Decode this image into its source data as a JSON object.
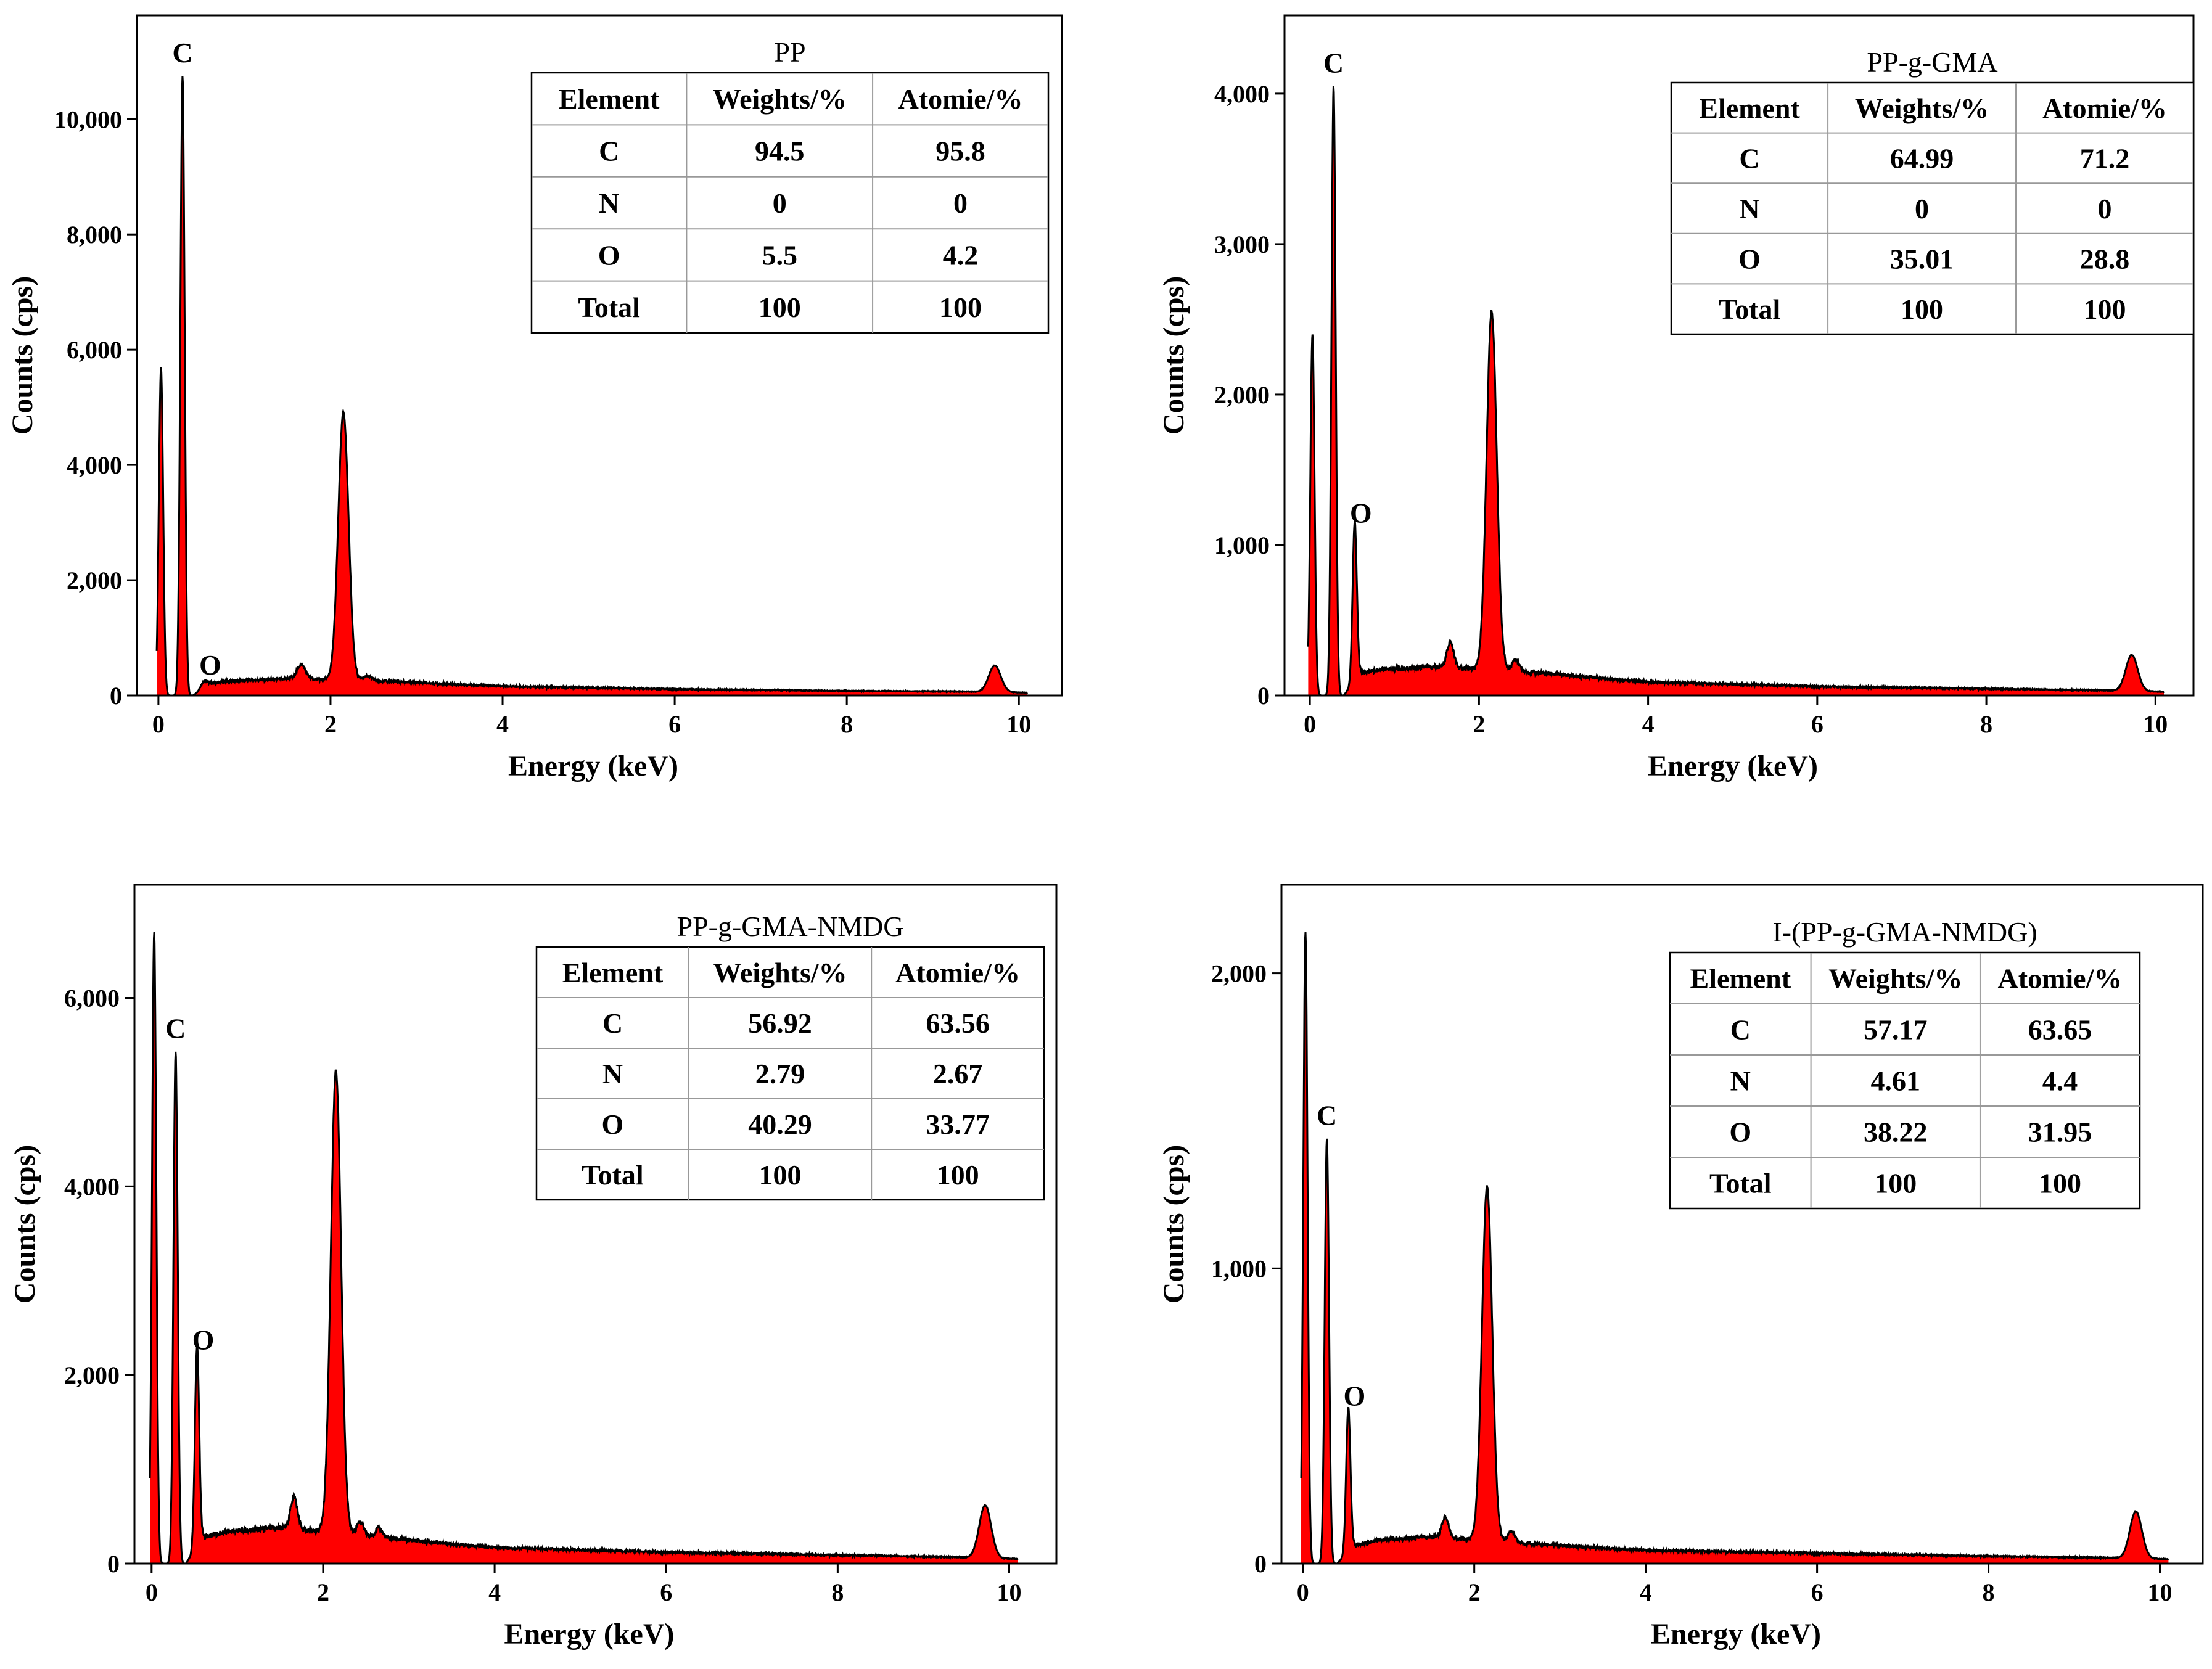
{
  "chart_data": [
    {
      "type": "area",
      "title": "PP",
      "xlabel": "Energy (keV)",
      "ylabel": "Counts (cps)",
      "xlim": [
        -0.25,
        10.5
      ],
      "ylim": [
        0,
        11800
      ],
      "xticks": [
        0,
        2,
        4,
        6,
        8,
        10
      ],
      "xtick_labels": [
        "0",
        "2",
        "4",
        "6",
        "8",
        "10"
      ],
      "yticks": [
        0,
        2000,
        4000,
        6000,
        8000,
        10000
      ],
      "ytick_labels": [
        "0",
        "2,000",
        "4,000",
        "6,000",
        "8,000",
        "10,000"
      ],
      "fill_color": "#ff0000",
      "line_color": "#000000",
      "baseline": {
        "x": [
          0.4,
          0.8,
          1.5,
          2.6,
          4,
          6,
          8,
          9.3,
          10.1
        ],
        "y": [
          150,
          250,
          290,
          250,
          160,
          110,
          80,
          70,
          50
        ]
      },
      "peaks": [
        {
          "x": 0.03,
          "y": 5700,
          "width": 0.025
        },
        {
          "x": 0.28,
          "y": 10750,
          "width": 0.025
        },
        {
          "x": 0.53,
          "y": 130,
          "width": 0.04
        },
        {
          "x": 1.66,
          "y": 250,
          "width": 0.05
        },
        {
          "x": 2.15,
          "y": 4650,
          "width": 0.06
        },
        {
          "x": 2.43,
          "y": 80,
          "width": 0.05
        },
        {
          "x": 9.72,
          "y": 460,
          "width": 0.07
        }
      ],
      "peak_labels": [
        {
          "text": "C",
          "x": 0.28,
          "y": 10750
        },
        {
          "text": "O",
          "x": 0.53,
          "y": 130
        }
      ],
      "table": {
        "headers": [
          "Element",
          "Weights/%",
          "Atomie/%"
        ],
        "rows": [
          [
            "C",
            "94.5",
            "95.8"
          ],
          [
            "N",
            "0",
            "0"
          ],
          [
            "O",
            "5.5",
            "4.2"
          ],
          [
            "Total",
            "100",
            "100"
          ]
        ]
      }
    },
    {
      "type": "area",
      "title": "PP-g-GMA",
      "xlabel": "Energy (keV)",
      "ylabel": "Counts (cps)",
      "xlim": [
        -0.3,
        10.45
      ],
      "ylim": [
        0,
        4520
      ],
      "xticks": [
        0,
        2,
        4,
        6,
        8,
        10
      ],
      "xtick_labels": [
        "0",
        "2",
        "4",
        "6",
        "8",
        "10"
      ],
      "yticks": [
        0,
        1000,
        2000,
        3000,
        4000
      ],
      "ytick_labels": [
        "0",
        "1,000",
        "2,000",
        "3,000",
        "4,000"
      ],
      "fill_color": "#ff0000",
      "line_color": "#000000",
      "baseline": {
        "x": [
          0.6,
          0.9,
          1.5,
          2.5,
          4,
          6,
          8,
          9.3,
          10.1
        ],
        "y": [
          150,
          175,
          190,
          160,
          90,
          60,
          45,
          35,
          25
        ]
      },
      "peaks": [
        {
          "x": 0.03,
          "y": 2400,
          "width": 0.025
        },
        {
          "x": 0.28,
          "y": 4050,
          "width": 0.025
        },
        {
          "x": 0.53,
          "y": 1060,
          "width": 0.025
        },
        {
          "x": 1.66,
          "y": 170,
          "width": 0.04
        },
        {
          "x": 2.15,
          "y": 2380,
          "width": 0.06
        },
        {
          "x": 2.43,
          "y": 80,
          "width": 0.04
        },
        {
          "x": 9.72,
          "y": 240,
          "width": 0.07
        }
      ],
      "peak_labels": [
        {
          "text": "C",
          "x": 0.28,
          "y": 4050
        },
        {
          "text": "O",
          "x": 0.53,
          "y": 1060
        }
      ],
      "table": {
        "headers": [
          "Element",
          "Weights/%",
          "Atomie/%"
        ],
        "rows": [
          [
            "C",
            "64.99",
            "71.2"
          ],
          [
            "N",
            "0",
            "0"
          ],
          [
            "O",
            "35.01",
            "28.8"
          ],
          [
            "Total",
            "100",
            "100"
          ]
        ]
      }
    },
    {
      "type": "area",
      "title": "PP-g-GMA-NMDG",
      "xlabel": "Energy (keV)",
      "ylabel": "Counts (cps)",
      "xlim": [
        -0.2,
        10.55
      ],
      "ylim": [
        0,
        7200
      ],
      "xticks": [
        0,
        2,
        4,
        6,
        8,
        10
      ],
      "xtick_labels": [
        "0",
        "2",
        "4",
        "6",
        "8",
        "10"
      ],
      "yticks": [
        0,
        2000,
        4000,
        6000
      ],
      "ytick_labels": [
        "0",
        "2,000",
        "4,000",
        "6,000"
      ],
      "fill_color": "#ff0000",
      "line_color": "#000000",
      "baseline": {
        "x": [
          0.6,
          0.9,
          1.5,
          2.5,
          4,
          6,
          8,
          9.3,
          10.1
        ],
        "y": [
          280,
          340,
          380,
          290,
          170,
          120,
          90,
          70,
          50
        ]
      },
      "peaks": [
        {
          "x": 0.03,
          "y": 6700,
          "width": 0.025
        },
        {
          "x": 0.28,
          "y": 5430,
          "width": 0.025
        },
        {
          "x": 0.53,
          "y": 2130,
          "width": 0.025
        },
        {
          "x": 1.66,
          "y": 350,
          "width": 0.04
        },
        {
          "x": 2.15,
          "y": 4900,
          "width": 0.06
        },
        {
          "x": 2.43,
          "y": 150,
          "width": 0.04
        },
        {
          "x": 2.65,
          "y": 100,
          "width": 0.04
        },
        {
          "x": 9.72,
          "y": 560,
          "width": 0.07
        }
      ],
      "peak_labels": [
        {
          "text": "C",
          "x": 0.28,
          "y": 5430
        },
        {
          "text": "O",
          "x": 0.53,
          "y": 2130
        }
      ],
      "table": {
        "headers": [
          "Element",
          "Weights/%",
          "Atomie/%"
        ],
        "rows": [
          [
            "C",
            "56.92",
            "63.56"
          ],
          [
            "N",
            "2.79",
            "2.67"
          ],
          [
            "O",
            "40.29",
            "33.77"
          ],
          [
            "Total",
            "100",
            "100"
          ]
        ]
      }
    },
    {
      "type": "area",
      "title": "I-(PP-g-GMA-NMDG)",
      "xlabel": "Energy (keV)",
      "ylabel": "Counts (cps)",
      "xlim": [
        -0.25,
        10.5
      ],
      "ylim": [
        0,
        2300
      ],
      "xticks": [
        0,
        2,
        4,
        6,
        8,
        10
      ],
      "xtick_labels": [
        "0",
        "2",
        "4",
        "6",
        "8",
        "10"
      ],
      "yticks": [
        0,
        1000,
        2000
      ],
      "ytick_labels": [
        "0",
        "1,000",
        "2,000"
      ],
      "fill_color": "#ff0000",
      "line_color": "#000000",
      "baseline": {
        "x": [
          0.6,
          0.9,
          1.5,
          2.5,
          4,
          6,
          8,
          9.3,
          10.1
        ],
        "y": [
          60,
          80,
          90,
          70,
          45,
          35,
          25,
          20,
          15
        ]
      },
      "peaks": [
        {
          "x": 0.03,
          "y": 2140,
          "width": 0.025
        },
        {
          "x": 0.28,
          "y": 1440,
          "width": 0.025
        },
        {
          "x": 0.53,
          "y": 490,
          "width": 0.025
        },
        {
          "x": 1.66,
          "y": 70,
          "width": 0.04
        },
        {
          "x": 2.15,
          "y": 1200,
          "width": 0.06
        },
        {
          "x": 2.43,
          "y": 40,
          "width": 0.04
        },
        {
          "x": 9.72,
          "y": 160,
          "width": 0.07
        }
      ],
      "peak_labels": [
        {
          "text": "C",
          "x": 0.28,
          "y": 1440
        },
        {
          "text": "O",
          "x": 0.53,
          "y": 490
        }
      ],
      "table": {
        "headers": [
          "Element",
          "Weights/%",
          "Atomie/%"
        ],
        "rows": [
          [
            "C",
            "57.17",
            "63.65"
          ],
          [
            "N",
            "4.61",
            "4.4"
          ],
          [
            "O",
            "38.22",
            "31.95"
          ],
          [
            "Total",
            "100",
            "100"
          ]
        ]
      }
    }
  ]
}
